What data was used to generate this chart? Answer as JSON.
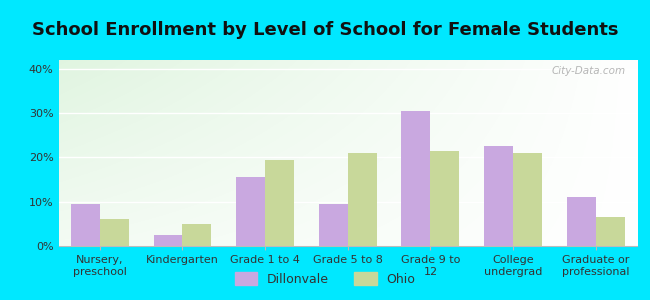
{
  "title": "School Enrollment by Level of School for Female Students",
  "categories": [
    "Nursery,\npreschool",
    "Kindergarten",
    "Grade 1 to 4",
    "Grade 5 to 8",
    "Grade 9 to\n12",
    "College\nundergrad",
    "Graduate or\nprofessional"
  ],
  "dillonvale": [
    9.5,
    2.5,
    15.5,
    9.5,
    30.5,
    22.5,
    11.0
  ],
  "ohio": [
    6.0,
    5.0,
    19.5,
    21.0,
    21.5,
    21.0,
    6.5
  ],
  "dillonvale_color": "#c9a8e0",
  "ohio_color": "#c8d89a",
  "background_outer": "#00e8ff",
  "ylim": [
    0,
    42
  ],
  "yticks": [
    0,
    10,
    20,
    30,
    40
  ],
  "ytick_labels": [
    "0%",
    "10%",
    "20%",
    "30%",
    "40%"
  ],
  "bar_width": 0.35,
  "title_fontsize": 13,
  "tick_fontsize": 8,
  "legend_fontsize": 9,
  "watermark": "City-Data.com",
  "legend_labels": [
    "Dillonvale",
    "Ohio"
  ]
}
